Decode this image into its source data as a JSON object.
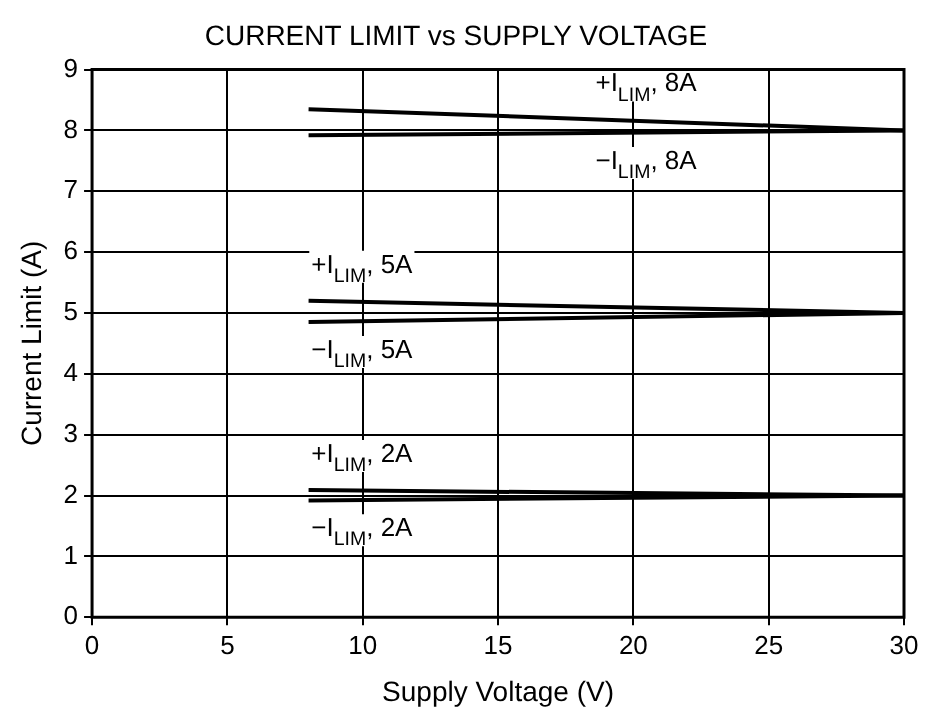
{
  "chart_data": {
    "type": "line",
    "title": "CURRENT LIMIT vs SUPPLY VOLTAGE",
    "xlabel": "Supply Voltage (V)",
    "ylabel": "Current Limit (A)",
    "x": [
      8,
      30
    ],
    "series": [
      {
        "name": "+I$_{LIM}$, 8A",
        "color": "#000000",
        "values": [
          8.35,
          8.0
        ]
      },
      {
        "name": "−I$_{LIM}$, 8A",
        "color": "#000000",
        "values": [
          7.92,
          8.0
        ]
      },
      {
        "name": "+I$_{LIM}$, 5A",
        "color": "#000000",
        "values": [
          5.2,
          5.0
        ]
      },
      {
        "name": "−I$_{LIM}$, 5A",
        "color": "#000000",
        "values": [
          4.85,
          5.0
        ]
      },
      {
        "name": "+I$_{LIM}$, 2A",
        "color": "#000000",
        "values": [
          2.09,
          2.0
        ]
      },
      {
        "name": "−I$_{LIM}$, 2A",
        "color": "#000000",
        "values": [
          1.92,
          2.0
        ]
      }
    ],
    "xlim": [
      0,
      30
    ],
    "xticks": [
      0,
      5,
      10,
      15,
      20,
      25,
      30
    ],
    "ylim": [
      0,
      9
    ],
    "yticks": [
      0,
      1,
      2,
      3,
      4,
      5,
      6,
      7,
      8,
      9
    ],
    "grid": true,
    "legend": false,
    "marker": "none",
    "line_style": "solid"
  }
}
